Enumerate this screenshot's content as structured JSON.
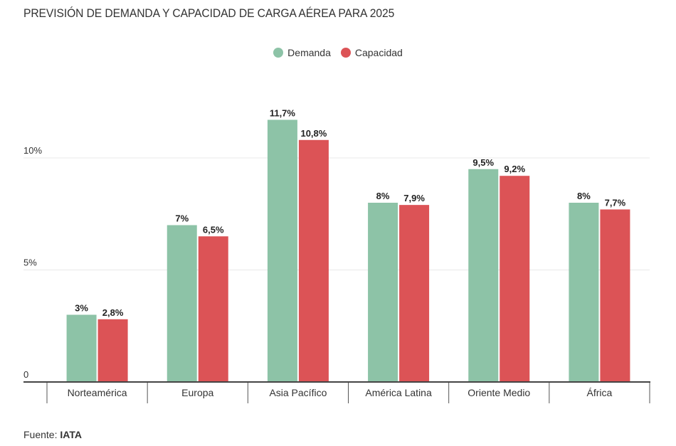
{
  "chart_data": {
    "type": "bar",
    "title": "PREVISIÓN DE DEMANDA Y CAPACIDAD DE CARGA AÉREA PARA 2025",
    "xlabel": "",
    "ylabel": "",
    "ylim": [
      0,
      12.5
    ],
    "yticks": [
      {
        "value": 0,
        "label": "0"
      },
      {
        "value": 5,
        "label": "5%"
      },
      {
        "value": 10,
        "label": "10%"
      }
    ],
    "grid": true,
    "legend_position": "top-center",
    "categories": [
      "Norteamérica",
      "Europa",
      "Asia Pacífico",
      "América Latina",
      "Oriente Medio",
      "África"
    ],
    "series": [
      {
        "name": "Demanda",
        "color": "#8dc3a7",
        "values": [
          3,
          7,
          11.7,
          8,
          9.5,
          8
        ],
        "labels": [
          "3%",
          "7%",
          "11,7%",
          "8%",
          "9,5%",
          "8%"
        ]
      },
      {
        "name": "Capacidad",
        "color": "#dc5356",
        "values": [
          2.8,
          6.5,
          10.8,
          7.9,
          9.2,
          7.7
        ],
        "labels": [
          "2,8%",
          "6,5%",
          "10,8%",
          "7,9%",
          "9,2%",
          "7,7%"
        ]
      }
    ]
  },
  "footer": {
    "source_label": "Fuente:",
    "source_value": "IATA"
  }
}
